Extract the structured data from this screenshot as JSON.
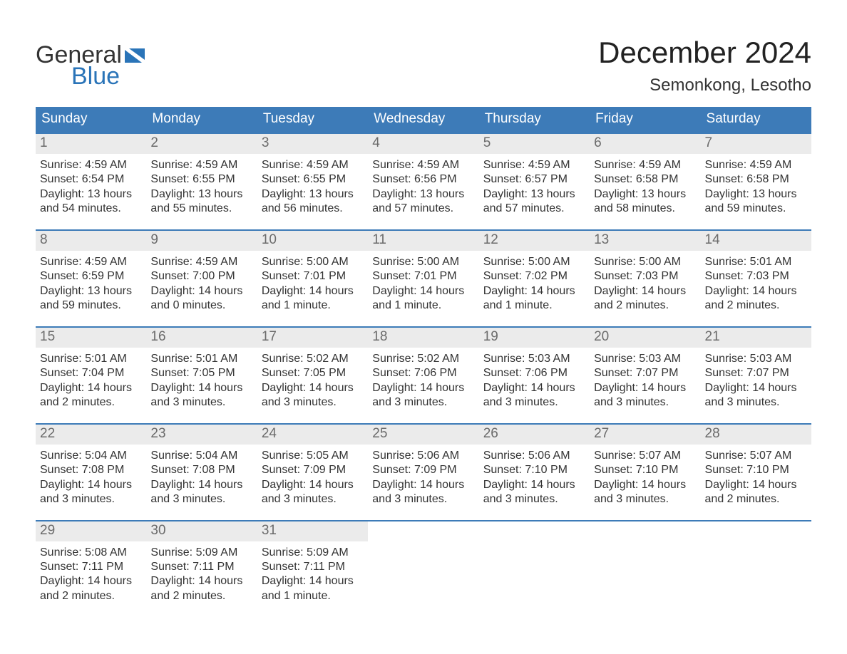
{
  "logo": {
    "general": "General",
    "blue": "Blue",
    "flag_color": "#2a74b8"
  },
  "title": "December 2024",
  "subtitle": "Semonkong, Lesotho",
  "colors": {
    "header_bg": "#3d7bb8",
    "header_text": "#ffffff",
    "daynum_bg": "#ebebeb",
    "daynum_text": "#6b6b6b",
    "week_border": "#3d7bb8",
    "body_text": "#333333",
    "page_bg": "#ffffff"
  },
  "dow": [
    "Sunday",
    "Monday",
    "Tuesday",
    "Wednesday",
    "Thursday",
    "Friday",
    "Saturday"
  ],
  "weeks": [
    [
      {
        "n": "1",
        "sr": "Sunrise: 4:59 AM",
        "ss": "Sunset: 6:54 PM",
        "d1": "Daylight: 13 hours",
        "d2": "and 54 minutes."
      },
      {
        "n": "2",
        "sr": "Sunrise: 4:59 AM",
        "ss": "Sunset: 6:55 PM",
        "d1": "Daylight: 13 hours",
        "d2": "and 55 minutes."
      },
      {
        "n": "3",
        "sr": "Sunrise: 4:59 AM",
        "ss": "Sunset: 6:55 PM",
        "d1": "Daylight: 13 hours",
        "d2": "and 56 minutes."
      },
      {
        "n": "4",
        "sr": "Sunrise: 4:59 AM",
        "ss": "Sunset: 6:56 PM",
        "d1": "Daylight: 13 hours",
        "d2": "and 57 minutes."
      },
      {
        "n": "5",
        "sr": "Sunrise: 4:59 AM",
        "ss": "Sunset: 6:57 PM",
        "d1": "Daylight: 13 hours",
        "d2": "and 57 minutes."
      },
      {
        "n": "6",
        "sr": "Sunrise: 4:59 AM",
        "ss": "Sunset: 6:58 PM",
        "d1": "Daylight: 13 hours",
        "d2": "and 58 minutes."
      },
      {
        "n": "7",
        "sr": "Sunrise: 4:59 AM",
        "ss": "Sunset: 6:58 PM",
        "d1": "Daylight: 13 hours",
        "d2": "and 59 minutes."
      }
    ],
    [
      {
        "n": "8",
        "sr": "Sunrise: 4:59 AM",
        "ss": "Sunset: 6:59 PM",
        "d1": "Daylight: 13 hours",
        "d2": "and 59 minutes."
      },
      {
        "n": "9",
        "sr": "Sunrise: 4:59 AM",
        "ss": "Sunset: 7:00 PM",
        "d1": "Daylight: 14 hours",
        "d2": "and 0 minutes."
      },
      {
        "n": "10",
        "sr": "Sunrise: 5:00 AM",
        "ss": "Sunset: 7:01 PM",
        "d1": "Daylight: 14 hours",
        "d2": "and 1 minute."
      },
      {
        "n": "11",
        "sr": "Sunrise: 5:00 AM",
        "ss": "Sunset: 7:01 PM",
        "d1": "Daylight: 14 hours",
        "d2": "and 1 minute."
      },
      {
        "n": "12",
        "sr": "Sunrise: 5:00 AM",
        "ss": "Sunset: 7:02 PM",
        "d1": "Daylight: 14 hours",
        "d2": "and 1 minute."
      },
      {
        "n": "13",
        "sr": "Sunrise: 5:00 AM",
        "ss": "Sunset: 7:03 PM",
        "d1": "Daylight: 14 hours",
        "d2": "and 2 minutes."
      },
      {
        "n": "14",
        "sr": "Sunrise: 5:01 AM",
        "ss": "Sunset: 7:03 PM",
        "d1": "Daylight: 14 hours",
        "d2": "and 2 minutes."
      }
    ],
    [
      {
        "n": "15",
        "sr": "Sunrise: 5:01 AM",
        "ss": "Sunset: 7:04 PM",
        "d1": "Daylight: 14 hours",
        "d2": "and 2 minutes."
      },
      {
        "n": "16",
        "sr": "Sunrise: 5:01 AM",
        "ss": "Sunset: 7:05 PM",
        "d1": "Daylight: 14 hours",
        "d2": "and 3 minutes."
      },
      {
        "n": "17",
        "sr": "Sunrise: 5:02 AM",
        "ss": "Sunset: 7:05 PM",
        "d1": "Daylight: 14 hours",
        "d2": "and 3 minutes."
      },
      {
        "n": "18",
        "sr": "Sunrise: 5:02 AM",
        "ss": "Sunset: 7:06 PM",
        "d1": "Daylight: 14 hours",
        "d2": "and 3 minutes."
      },
      {
        "n": "19",
        "sr": "Sunrise: 5:03 AM",
        "ss": "Sunset: 7:06 PM",
        "d1": "Daylight: 14 hours",
        "d2": "and 3 minutes."
      },
      {
        "n": "20",
        "sr": "Sunrise: 5:03 AM",
        "ss": "Sunset: 7:07 PM",
        "d1": "Daylight: 14 hours",
        "d2": "and 3 minutes."
      },
      {
        "n": "21",
        "sr": "Sunrise: 5:03 AM",
        "ss": "Sunset: 7:07 PM",
        "d1": "Daylight: 14 hours",
        "d2": "and 3 minutes."
      }
    ],
    [
      {
        "n": "22",
        "sr": "Sunrise: 5:04 AM",
        "ss": "Sunset: 7:08 PM",
        "d1": "Daylight: 14 hours",
        "d2": "and 3 minutes."
      },
      {
        "n": "23",
        "sr": "Sunrise: 5:04 AM",
        "ss": "Sunset: 7:08 PM",
        "d1": "Daylight: 14 hours",
        "d2": "and 3 minutes."
      },
      {
        "n": "24",
        "sr": "Sunrise: 5:05 AM",
        "ss": "Sunset: 7:09 PM",
        "d1": "Daylight: 14 hours",
        "d2": "and 3 minutes."
      },
      {
        "n": "25",
        "sr": "Sunrise: 5:06 AM",
        "ss": "Sunset: 7:09 PM",
        "d1": "Daylight: 14 hours",
        "d2": "and 3 minutes."
      },
      {
        "n": "26",
        "sr": "Sunrise: 5:06 AM",
        "ss": "Sunset: 7:10 PM",
        "d1": "Daylight: 14 hours",
        "d2": "and 3 minutes."
      },
      {
        "n": "27",
        "sr": "Sunrise: 5:07 AM",
        "ss": "Sunset: 7:10 PM",
        "d1": "Daylight: 14 hours",
        "d2": "and 3 minutes."
      },
      {
        "n": "28",
        "sr": "Sunrise: 5:07 AM",
        "ss": "Sunset: 7:10 PM",
        "d1": "Daylight: 14 hours",
        "d2": "and 2 minutes."
      }
    ],
    [
      {
        "n": "29",
        "sr": "Sunrise: 5:08 AM",
        "ss": "Sunset: 7:11 PM",
        "d1": "Daylight: 14 hours",
        "d2": "and 2 minutes."
      },
      {
        "n": "30",
        "sr": "Sunrise: 5:09 AM",
        "ss": "Sunset: 7:11 PM",
        "d1": "Daylight: 14 hours",
        "d2": "and 2 minutes."
      },
      {
        "n": "31",
        "sr": "Sunrise: 5:09 AM",
        "ss": "Sunset: 7:11 PM",
        "d1": "Daylight: 14 hours",
        "d2": "and 1 minute."
      },
      null,
      null,
      null,
      null
    ]
  ]
}
